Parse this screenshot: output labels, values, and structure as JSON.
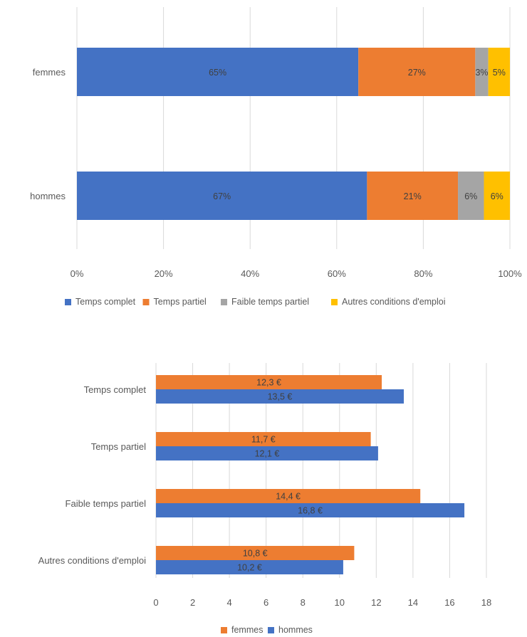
{
  "chart_data": [
    {
      "type": "bar",
      "orientation": "horizontal",
      "stacked": true,
      "percent": true,
      "categories": [
        "femmes",
        "hommes"
      ],
      "series": [
        {
          "name": "Temps complet",
          "color": "#4472c4",
          "values": [
            65,
            67
          ],
          "labels": [
            "65%",
            "67%"
          ]
        },
        {
          "name": "Temps partiel",
          "color": "#ed7d31",
          "values": [
            27,
            21
          ],
          "labels": [
            "27%",
            "21%"
          ]
        },
        {
          "name": "Faible temps partiel",
          "color": "#a5a5a5",
          "values": [
            3,
            6
          ],
          "labels": [
            "3%",
            "6%"
          ]
        },
        {
          "name": "Autres conditions d'emploi",
          "color": "#ffc000",
          "values": [
            5,
            6
          ],
          "labels": [
            "5%",
            "6%"
          ]
        }
      ],
      "xlim": [
        0,
        100
      ],
      "xticks": [
        "0%",
        "20%",
        "40%",
        "60%",
        "80%",
        "100%"
      ],
      "grid": true,
      "legend": "bottom"
    },
    {
      "type": "bar",
      "orientation": "horizontal",
      "grouped": true,
      "categories": [
        "Temps complet",
        "Temps partiel",
        "Faible temps partiel",
        "Autres conditions d'emploi"
      ],
      "series": [
        {
          "name": "femmes",
          "color": "#ed7d31",
          "values": [
            12.3,
            11.7,
            14.4,
            10.8
          ],
          "labels": [
            "12,3 €",
            "11,7 €",
            "14,4 €",
            "10,8 €"
          ]
        },
        {
          "name": "hommes",
          "color": "#4472c4",
          "values": [
            13.5,
            12.1,
            16.8,
            10.2
          ],
          "labels": [
            "13,5 €",
            "12,1 €",
            "16,8 €",
            "10,2 €"
          ]
        }
      ],
      "xlim": [
        0,
        18
      ],
      "xticks": [
        "0",
        "2",
        "4",
        "6",
        "8",
        "10",
        "12",
        "14",
        "16",
        "18"
      ],
      "grid": true,
      "legend": "bottom"
    }
  ]
}
